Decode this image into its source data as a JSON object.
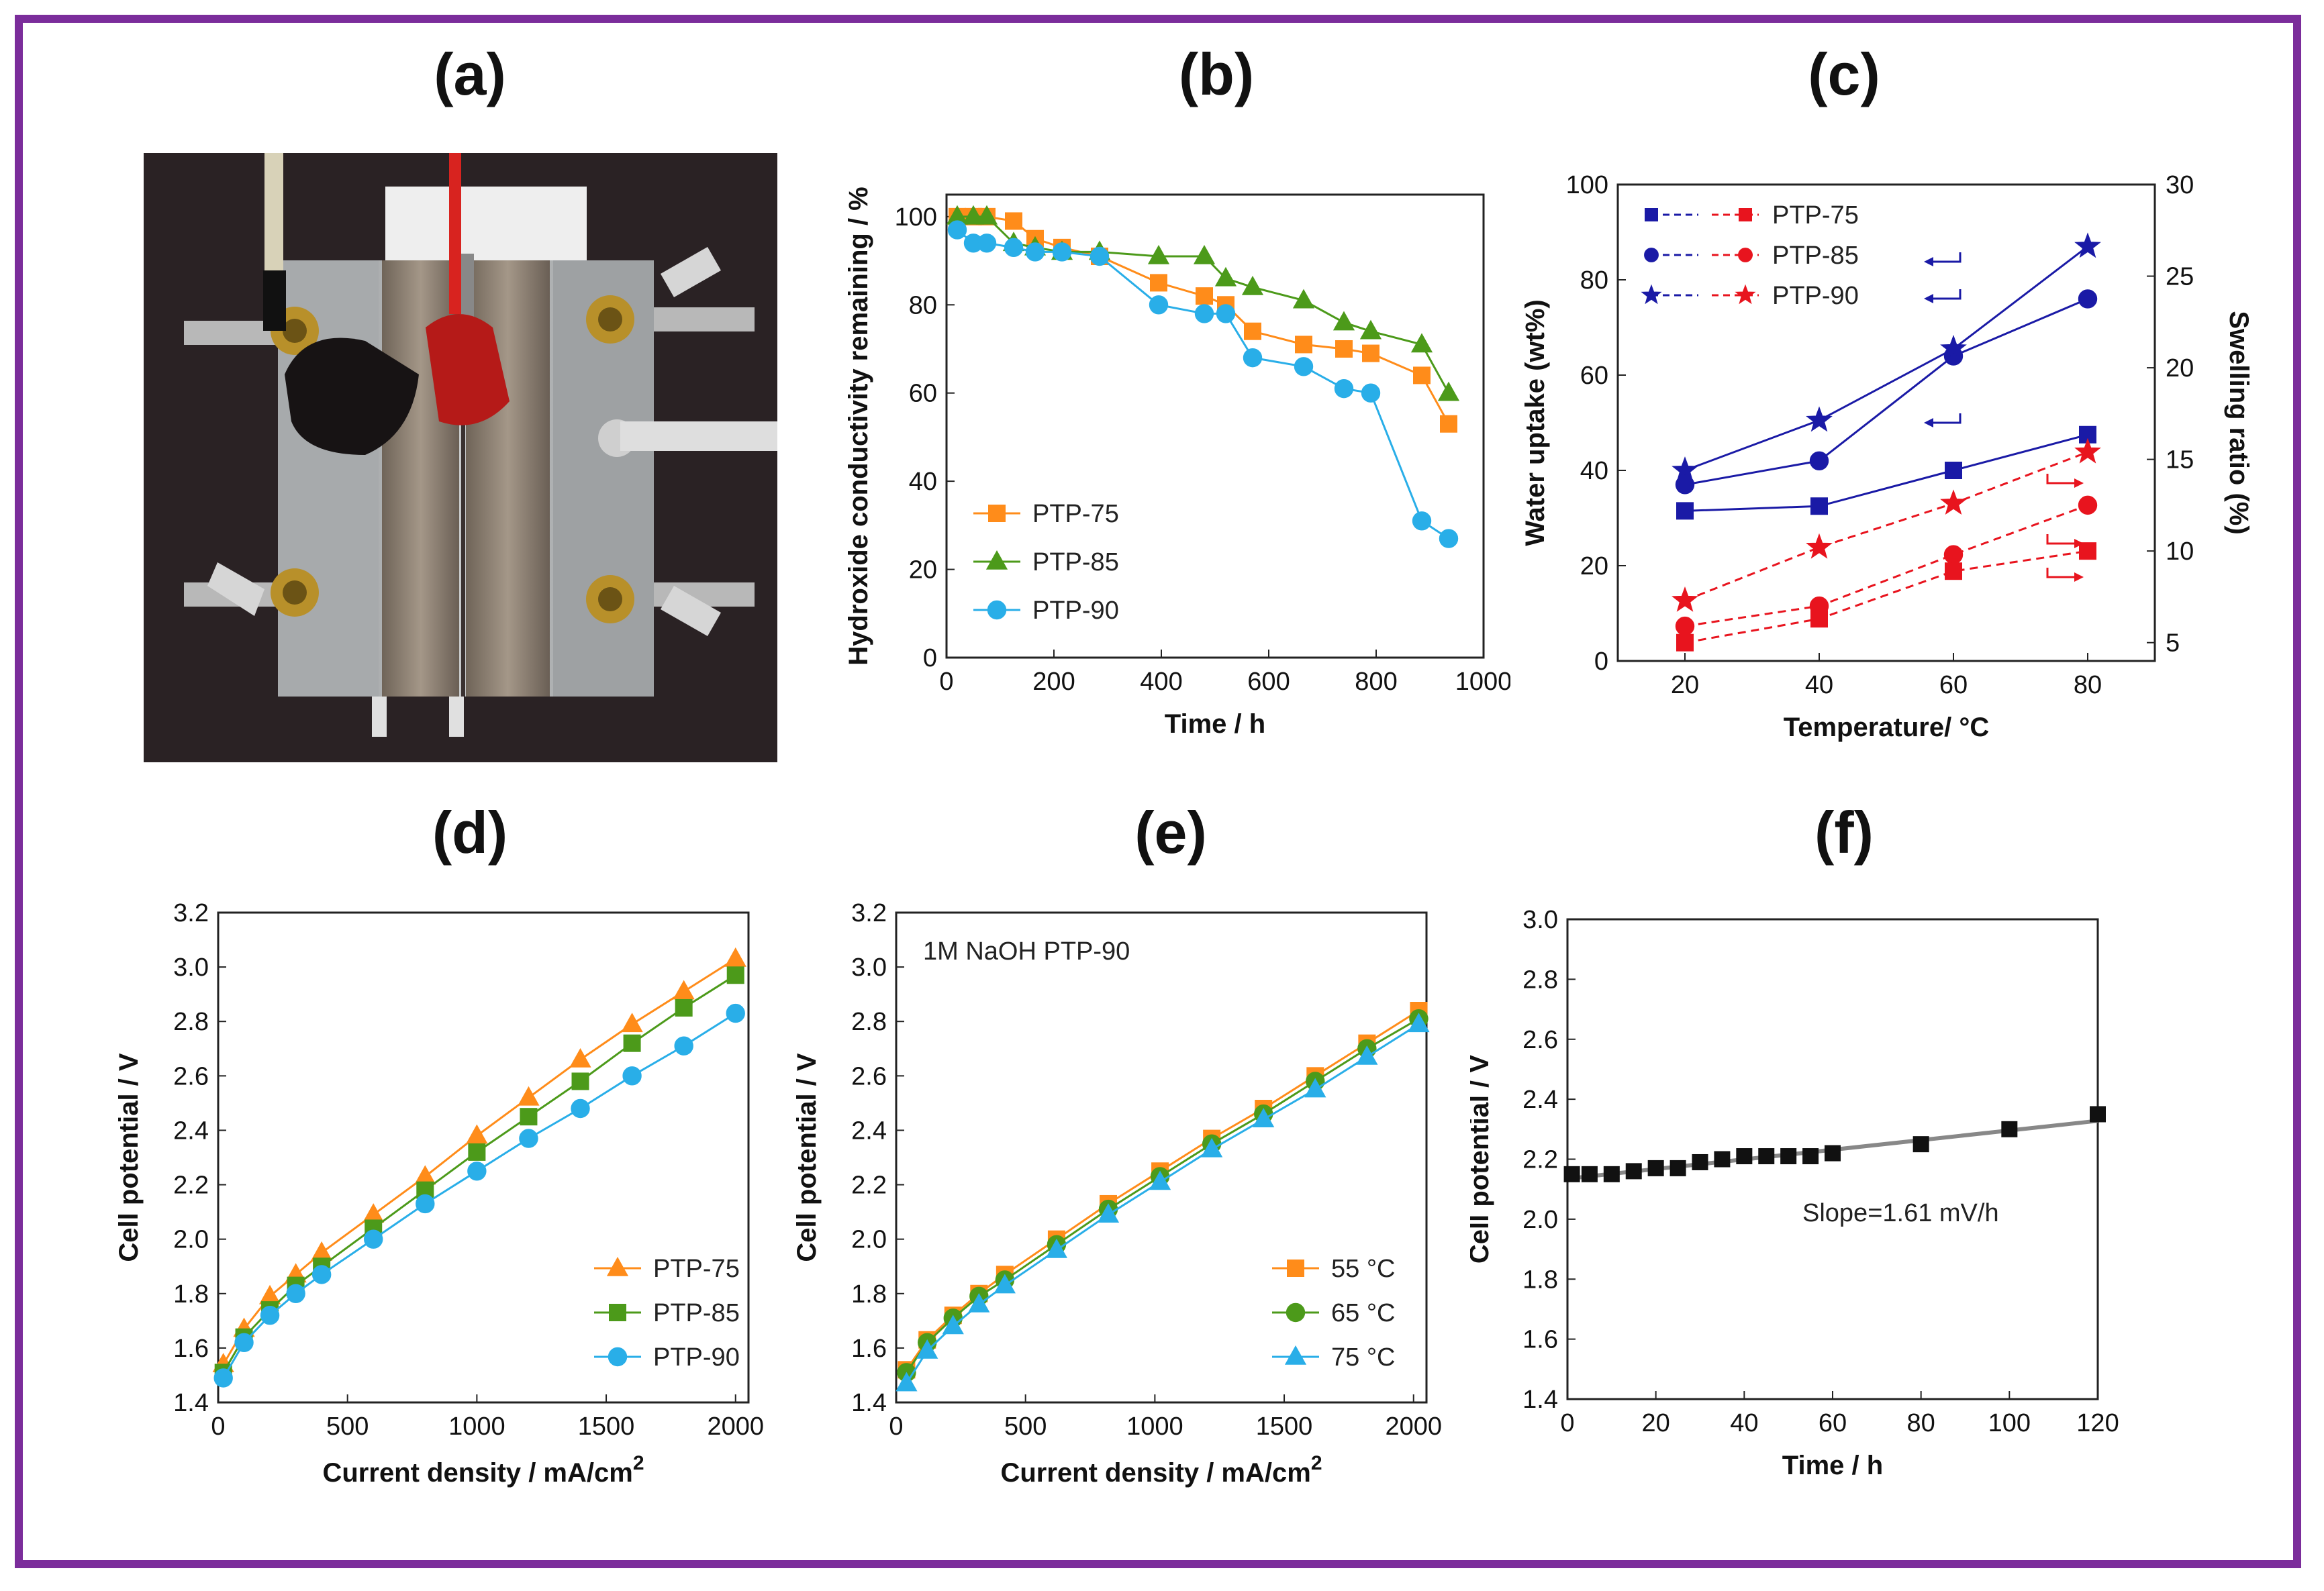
{
  "panel_labels": [
    "(a)",
    "(b)",
    "(c)",
    "(d)",
    "(e)",
    "(f)"
  ],
  "colors": {
    "frame": "#7b2d9b",
    "orange": "#ff8c1a",
    "green": "#4c9a1a",
    "cyan": "#29aee8",
    "blue": "#1a1aa6",
    "red": "#e8141e"
  },
  "photo": {
    "description_icon": "electrolysis-cell-photo"
  },
  "chart_data": [
    {
      "id": "b",
      "type": "line",
      "xlabel": "Time / h",
      "ylabel": "Hydroxide conductivity remaining / %",
      "xlim": [
        0,
        1000
      ],
      "ylim": [
        0,
        105
      ],
      "xticks": [
        0,
        200,
        400,
        600,
        800,
        1000
      ],
      "yticks": [
        0,
        20,
        40,
        60,
        80,
        100
      ],
      "legend_position": "bottom-left",
      "series": [
        {
          "name": "PTP-75",
          "color": "#ff8c1a",
          "marker": "square",
          "x": [
            20,
            50,
            75,
            125,
            165,
            215,
            285,
            395,
            480,
            520,
            570,
            665,
            740,
            790,
            885,
            935
          ],
          "y": [
            100,
            100,
            100,
            99,
            95,
            93,
            91,
            85,
            82,
            80,
            74,
            71,
            70,
            69,
            64,
            53
          ]
        },
        {
          "name": "PTP-85",
          "color": "#4c9a1a",
          "marker": "triangle",
          "x": [
            20,
            50,
            75,
            125,
            165,
            215,
            285,
            395,
            480,
            520,
            570,
            665,
            740,
            790,
            885,
            935
          ],
          "y": [
            100,
            100,
            100,
            94,
            93,
            92,
            92,
            91,
            91,
            86,
            84,
            81,
            76,
            74,
            71,
            60
          ]
        },
        {
          "name": "PTP-90",
          "color": "#29aee8",
          "marker": "circle",
          "x": [
            20,
            50,
            75,
            125,
            165,
            215,
            285,
            395,
            480,
            520,
            570,
            665,
            740,
            790,
            885,
            935
          ],
          "y": [
            97,
            94,
            94,
            93,
            92,
            92,
            91,
            80,
            78,
            78,
            68,
            66,
            61,
            60,
            31,
            27
          ]
        }
      ]
    },
    {
      "id": "c",
      "type": "line",
      "xlabel": "Temperature/ °C",
      "ylabel": "Water uptake (wt%)",
      "ylabel_right": "Swelling ratio (%)",
      "xlim": [
        10,
        90
      ],
      "ylim": [
        0,
        100
      ],
      "ylim_right": [
        4,
        30
      ],
      "xticks": [
        20,
        40,
        60,
        80
      ],
      "yticks": [
        0,
        20,
        40,
        60,
        80,
        100
      ],
      "yticks_right": [
        5,
        10,
        15,
        20,
        25,
        30
      ],
      "legend_position": "top-left",
      "legend": [
        "PTP-75",
        "PTP-85",
        "PTP-90"
      ],
      "x": [
        20,
        40,
        60,
        80
      ],
      "series": [
        {
          "name": "PTP-75",
          "axis": "left",
          "color": "#1a1aa6",
          "marker": "square",
          "y": [
            31.5,
            32.5,
            40,
            47.5
          ]
        },
        {
          "name": "PTP-85",
          "axis": "left",
          "color": "#1a1aa6",
          "marker": "circle",
          "y": [
            37,
            42,
            64,
            76
          ]
        },
        {
          "name": "PTP-90",
          "axis": "left",
          "color": "#1a1aa6",
          "marker": "star",
          "y": [
            40,
            50.5,
            65.5,
            87
          ]
        },
        {
          "name": "PTP-75",
          "axis": "right",
          "color": "#e8141e",
          "marker": "square",
          "y": [
            5.0,
            6.3,
            8.9,
            10.0
          ]
        },
        {
          "name": "PTP-85",
          "axis": "right",
          "color": "#e8141e",
          "marker": "circle",
          "y": [
            5.9,
            7.0,
            9.8,
            12.5
          ]
        },
        {
          "name": "PTP-90",
          "axis": "right",
          "color": "#e8141e",
          "marker": "star",
          "y": [
            7.3,
            10.2,
            12.6,
            15.4
          ]
        }
      ]
    },
    {
      "id": "d",
      "type": "line",
      "xlabel": "Current density / mA/cm",
      "xlabel_sup": "2",
      "ylabel": "Cell potential / V",
      "xlim": [
        0,
        2050
      ],
      "ylim": [
        1.4,
        3.2
      ],
      "xticks": [
        0,
        500,
        1000,
        1500,
        2000
      ],
      "yticks": [
        "1.4",
        "1.6",
        "1.8",
        "2.0",
        "2.2",
        "2.4",
        "2.6",
        "2.8",
        "3.0",
        "3.2"
      ],
      "legend_position": "bottom-right",
      "x": [
        20,
        100,
        200,
        300,
        400,
        600,
        800,
        1000,
        1200,
        1400,
        1600,
        1800,
        2000
      ],
      "series": [
        {
          "name": "PTP-75",
          "color": "#ff8c1a",
          "marker": "triangle",
          "y": [
            1.54,
            1.67,
            1.79,
            1.87,
            1.95,
            2.09,
            2.23,
            2.38,
            2.52,
            2.66,
            2.79,
            2.91,
            3.03
          ]
        },
        {
          "name": "PTP-85",
          "color": "#4c9a1a",
          "marker": "square",
          "y": [
            1.51,
            1.64,
            1.74,
            1.83,
            1.9,
            2.04,
            2.18,
            2.32,
            2.45,
            2.58,
            2.72,
            2.85,
            2.97
          ]
        },
        {
          "name": "PTP-90",
          "color": "#29aee8",
          "marker": "circle",
          "y": [
            1.49,
            1.62,
            1.72,
            1.8,
            1.87,
            2.0,
            2.13,
            2.25,
            2.37,
            2.48,
            2.6,
            2.71,
            2.83
          ]
        }
      ]
    },
    {
      "id": "e",
      "type": "line",
      "annotation": "1M NaOH PTP-90",
      "xlabel": "Current density / mA/cm",
      "xlabel_sup": "2",
      "ylabel": "Cell potential / V",
      "xlim": [
        0,
        2050
      ],
      "ylim": [
        1.4,
        3.2
      ],
      "xticks": [
        0,
        500,
        1000,
        1500,
        2000
      ],
      "yticks": [
        "1.4",
        "1.6",
        "1.8",
        "2.0",
        "2.2",
        "2.4",
        "2.6",
        "2.8",
        "3.0",
        "3.2"
      ],
      "legend_position": "bottom-right",
      "x": [
        40,
        120,
        220,
        320,
        420,
        620,
        820,
        1020,
        1220,
        1420,
        1620,
        1820,
        2020
      ],
      "series": [
        {
          "name": "55 °C",
          "color": "#ff8c1a",
          "marker": "square",
          "y": [
            1.52,
            1.63,
            1.72,
            1.8,
            1.87,
            2.0,
            2.13,
            2.25,
            2.37,
            2.48,
            2.6,
            2.72,
            2.84
          ]
        },
        {
          "name": "65 °C",
          "color": "#4c9a1a",
          "marker": "circle",
          "y": [
            1.51,
            1.62,
            1.71,
            1.79,
            1.85,
            1.98,
            2.11,
            2.23,
            2.35,
            2.46,
            2.58,
            2.7,
            2.81
          ]
        },
        {
          "name": "75 °C",
          "color": "#29aee8",
          "marker": "triangle",
          "y": [
            1.47,
            1.59,
            1.68,
            1.76,
            1.83,
            1.96,
            2.09,
            2.21,
            2.33,
            2.44,
            2.55,
            2.67,
            2.79
          ]
        }
      ]
    },
    {
      "id": "f",
      "type": "scatter",
      "annotation": "Slope=1.61 mV/h",
      "xlabel": "Time / h",
      "ylabel": "Cell potential / V",
      "xlim": [
        0,
        120
      ],
      "ylim": [
        1.4,
        3.0
      ],
      "xticks": [
        0,
        20,
        40,
        60,
        80,
        100,
        120
      ],
      "yticks": [
        "1.4",
        "1.6",
        "1.8",
        "2.0",
        "2.2",
        "2.4",
        "2.6",
        "2.8",
        "3.0"
      ],
      "series": [
        {
          "name": "",
          "color": "#111111",
          "marker": "square",
          "x": [
            1,
            5,
            10,
            15,
            20,
            25,
            30,
            35,
            40,
            45,
            50,
            55,
            60,
            80,
            100,
            120
          ],
          "y": [
            2.15,
            2.15,
            2.15,
            2.16,
            2.17,
            2.17,
            2.19,
            2.2,
            2.21,
            2.21,
            2.21,
            2.21,
            2.22,
            2.25,
            2.3,
            2.35
          ]
        }
      ],
      "fit": {
        "x": [
          0,
          120
        ],
        "y": [
          2.135,
          2.328
        ],
        "color": "#888888"
      }
    }
  ]
}
